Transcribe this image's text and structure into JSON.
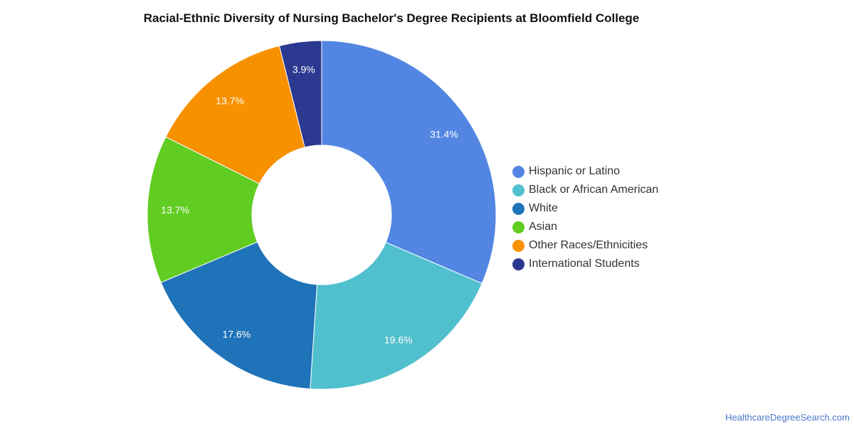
{
  "chart_data": {
    "type": "pie",
    "title": "Racial-Ethnic Diversity of Nursing Bachelor's Degree Recipients at Bloomfield College",
    "donut": true,
    "slices": [
      {
        "label": "Hispanic or Latino",
        "value": 31.4,
        "display": "31.4%",
        "color": "#5286e2"
      },
      {
        "label": "Black or African American",
        "value": 19.6,
        "display": "19.6%",
        "color": "#51c0ce"
      },
      {
        "label": "White",
        "value": 17.6,
        "display": "17.6%",
        "color": "#1f73b9"
      },
      {
        "label": "Asian",
        "value": 13.7,
        "display": "13.7%",
        "color": "#61cc22"
      },
      {
        "label": "Other Races/Ethnicities",
        "value": 13.7,
        "display": "13.7%",
        "color": "#f79100"
      },
      {
        "label": "International Students",
        "value": 3.9,
        "display": "3.9%",
        "color": "#2b3990"
      }
    ],
    "legend_position": "right"
  },
  "watermark": "HealthcareDegreeSearch.com"
}
